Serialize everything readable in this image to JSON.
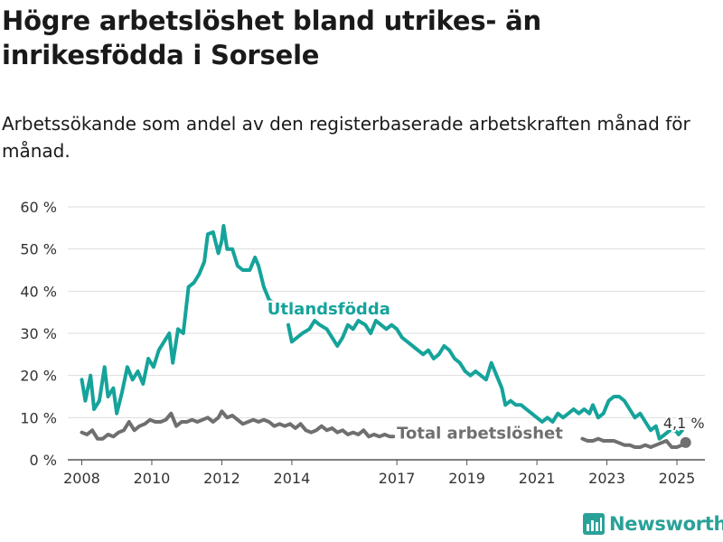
{
  "title": "Högre arbetslöshet bland utrikes- än inrikesfödda i Sorsele",
  "subtitle": "Arbetssökande som andel av den registerbaserade arbetskraften månad för månad.",
  "logo_text": "Newsworthy",
  "colors": {
    "foreign_born": "#15a39a",
    "total": "#6f6f6f",
    "grid": "#dddddd",
    "axis": "#555555",
    "text": "#1a1a1a"
  },
  "chart_data": {
    "type": "line",
    "title": "Högre arbetslöshet bland utrikes- än inrikesfödda i Sorsele",
    "subtitle": "Arbetssökande som andel av den registerbaserade arbetskraften månad för månad.",
    "xlabel": "",
    "ylabel": "",
    "ylim": [
      0,
      60
    ],
    "yticks": [
      0,
      10,
      20,
      30,
      40,
      50,
      60
    ],
    "ytick_labels": [
      "0 %",
      "10 %",
      "20 %",
      "30 %",
      "40 %",
      "50 %",
      "60 %"
    ],
    "xlim": [
      2007.6,
      2025.8
    ],
    "xticks": [
      2008,
      2010,
      2012,
      2014,
      2017,
      2019,
      2021,
      2023,
      2025
    ],
    "xtick_labels": [
      "2008",
      "2010",
      "2012",
      "2014",
      "2017",
      "2019",
      "2021",
      "2023",
      "2025"
    ],
    "grid": true,
    "legend": "inline labels",
    "annotation": {
      "text": "4,1 %",
      "x": 2025.25,
      "y": 4.1
    },
    "series": [
      {
        "name": "Utlandsfödda",
        "label_position": [
          2013.3,
          34.5
        ],
        "points": [
          [
            2008.0,
            19
          ],
          [
            2008.1,
            14
          ],
          [
            2008.25,
            20
          ],
          [
            2008.35,
            12
          ],
          [
            2008.5,
            14
          ],
          [
            2008.65,
            22
          ],
          [
            2008.75,
            15
          ],
          [
            2008.9,
            17
          ],
          [
            2009.0,
            11
          ],
          [
            2009.15,
            16
          ],
          [
            2009.3,
            22
          ],
          [
            2009.45,
            19
          ],
          [
            2009.6,
            21
          ],
          [
            2009.75,
            18
          ],
          [
            2009.9,
            24
          ],
          [
            2010.05,
            22
          ],
          [
            2010.2,
            26
          ],
          [
            2010.35,
            28
          ],
          [
            2010.5,
            30
          ],
          [
            2010.6,
            23
          ],
          [
            2010.75,
            31
          ],
          [
            2010.9,
            30
          ],
          [
            2011.05,
            41
          ],
          [
            2011.2,
            42
          ],
          [
            2011.35,
            44
          ],
          [
            2011.5,
            47
          ],
          [
            2011.6,
            53.5
          ],
          [
            2011.75,
            54
          ],
          [
            2011.9,
            49
          ],
          [
            2012.0,
            52
          ],
          [
            2012.05,
            55.5
          ],
          [
            2012.15,
            50
          ],
          [
            2012.3,
            50
          ],
          [
            2012.45,
            46
          ],
          [
            2012.6,
            45
          ],
          [
            2012.8,
            45
          ],
          [
            2012.95,
            48
          ],
          [
            2013.05,
            46
          ],
          [
            2013.2,
            41
          ],
          [
            2013.35,
            38
          ],
          [
            2013.5,
            37
          ],
          null,
          [
            2013.9,
            32
          ],
          [
            2014.0,
            28
          ],
          [
            2014.15,
            29
          ],
          [
            2014.3,
            30
          ],
          [
            2014.5,
            31
          ],
          [
            2014.65,
            33
          ],
          [
            2014.8,
            32
          ],
          [
            2015.0,
            31
          ],
          [
            2015.15,
            29
          ],
          [
            2015.3,
            27
          ],
          [
            2015.45,
            29
          ],
          [
            2015.6,
            32
          ],
          [
            2015.75,
            31
          ],
          [
            2015.9,
            33
          ],
          [
            2016.1,
            32
          ],
          [
            2016.25,
            30
          ],
          [
            2016.4,
            33
          ],
          [
            2016.55,
            32
          ],
          [
            2016.7,
            31
          ],
          [
            2016.85,
            32
          ],
          [
            2017.0,
            31
          ],
          [
            2017.15,
            29
          ],
          [
            2017.3,
            28
          ],
          [
            2017.45,
            27
          ],
          [
            2017.6,
            26
          ],
          [
            2017.75,
            25
          ],
          [
            2017.9,
            26
          ],
          [
            2018.05,
            24
          ],
          [
            2018.2,
            25
          ],
          [
            2018.35,
            27
          ],
          [
            2018.5,
            26
          ],
          [
            2018.65,
            24
          ],
          [
            2018.8,
            23
          ],
          [
            2018.95,
            21
          ],
          [
            2019.1,
            20
          ],
          [
            2019.25,
            21
          ],
          [
            2019.4,
            20
          ],
          [
            2019.55,
            19
          ],
          [
            2019.7,
            23
          ],
          [
            2019.85,
            20
          ],
          [
            2020.0,
            17
          ],
          [
            2020.1,
            13
          ],
          [
            2020.25,
            14
          ],
          [
            2020.4,
            13
          ],
          [
            2020.55,
            13
          ],
          [
            2020.7,
            12
          ],
          [
            2020.85,
            11
          ],
          [
            2021.0,
            10
          ],
          [
            2021.15,
            9
          ],
          [
            2021.3,
            10
          ],
          [
            2021.45,
            9
          ],
          [
            2021.6,
            11
          ],
          [
            2021.75,
            10
          ],
          [
            2021.9,
            11
          ],
          [
            2022.05,
            12
          ],
          [
            2022.2,
            11
          ],
          [
            2022.35,
            12
          ],
          [
            2022.5,
            11
          ],
          [
            2022.6,
            13
          ],
          [
            2022.75,
            10
          ],
          [
            2022.9,
            11
          ],
          [
            2023.05,
            14
          ],
          [
            2023.2,
            15
          ],
          [
            2023.35,
            15
          ],
          [
            2023.5,
            14
          ],
          [
            2023.65,
            12
          ],
          [
            2023.8,
            10
          ],
          [
            2023.95,
            11
          ],
          [
            2024.1,
            9
          ],
          [
            2024.25,
            7
          ],
          [
            2024.4,
            8
          ],
          [
            2024.5,
            5
          ],
          [
            2024.65,
            6
          ],
          [
            2024.8,
            7
          ],
          [
            2024.95,
            7
          ],
          [
            2025.05,
            6
          ],
          [
            2025.15,
            7
          ]
        ]
      },
      {
        "name": "Total arbetslöshet",
        "label_position": [
          2017.0,
          5.0
        ],
        "points": [
          [
            2008.0,
            6.5
          ],
          [
            2008.15,
            6
          ],
          [
            2008.3,
            7
          ],
          [
            2008.45,
            5
          ],
          [
            2008.6,
            5
          ],
          [
            2008.75,
            6
          ],
          [
            2008.9,
            5.5
          ],
          [
            2009.05,
            6.5
          ],
          [
            2009.2,
            7
          ],
          [
            2009.35,
            9
          ],
          [
            2009.5,
            7
          ],
          [
            2009.65,
            8
          ],
          [
            2009.8,
            8.5
          ],
          [
            2009.95,
            9.5
          ],
          [
            2010.1,
            9
          ],
          [
            2010.25,
            9
          ],
          [
            2010.4,
            9.5
          ],
          [
            2010.55,
            11
          ],
          [
            2010.7,
            8
          ],
          [
            2010.85,
            9
          ],
          [
            2011.0,
            9
          ],
          [
            2011.15,
            9.5
          ],
          [
            2011.3,
            9
          ],
          [
            2011.45,
            9.5
          ],
          [
            2011.6,
            10
          ],
          [
            2011.75,
            9
          ],
          [
            2011.9,
            10
          ],
          [
            2012.0,
            11.5
          ],
          [
            2012.15,
            10
          ],
          [
            2012.3,
            10.5
          ],
          [
            2012.45,
            9.5
          ],
          [
            2012.6,
            8.5
          ],
          [
            2012.75,
            9
          ],
          [
            2012.9,
            9.5
          ],
          [
            2013.05,
            9
          ],
          [
            2013.2,
            9.5
          ],
          [
            2013.35,
            9
          ],
          [
            2013.5,
            8
          ],
          [
            2013.65,
            8.5
          ],
          [
            2013.8,
            8
          ],
          [
            2013.95,
            8.5
          ],
          [
            2014.1,
            7.5
          ],
          [
            2014.25,
            8.5
          ],
          [
            2014.4,
            7
          ],
          [
            2014.55,
            6.5
          ],
          [
            2014.7,
            7
          ],
          [
            2014.85,
            8
          ],
          [
            2015.0,
            7
          ],
          [
            2015.15,
            7.5
          ],
          [
            2015.3,
            6.5
          ],
          [
            2015.45,
            7
          ],
          [
            2015.6,
            6
          ],
          [
            2015.75,
            6.5
          ],
          [
            2015.9,
            6
          ],
          [
            2016.05,
            7
          ],
          [
            2016.2,
            5.5
          ],
          [
            2016.35,
            6
          ],
          [
            2016.5,
            5.5
          ],
          [
            2016.65,
            6
          ],
          [
            2016.8,
            5.5
          ],
          [
            2016.9,
            5.5
          ],
          null,
          [
            2022.3,
            5
          ],
          [
            2022.45,
            4.5
          ],
          [
            2022.6,
            4.5
          ],
          [
            2022.75,
            5
          ],
          [
            2022.9,
            4.5
          ],
          [
            2023.05,
            4.5
          ],
          [
            2023.2,
            4.5
          ],
          [
            2023.35,
            4
          ],
          [
            2023.5,
            3.5
          ],
          [
            2023.65,
            3.5
          ],
          [
            2023.8,
            3
          ],
          [
            2023.95,
            3
          ],
          [
            2024.1,
            3.5
          ],
          [
            2024.25,
            3
          ],
          [
            2024.4,
            3.5
          ],
          [
            2024.55,
            4
          ],
          [
            2024.7,
            4.5
          ],
          [
            2024.85,
            3
          ],
          [
            2025.0,
            3
          ],
          [
            2025.15,
            3.5
          ],
          [
            2025.25,
            4.1
          ]
        ]
      }
    ]
  }
}
